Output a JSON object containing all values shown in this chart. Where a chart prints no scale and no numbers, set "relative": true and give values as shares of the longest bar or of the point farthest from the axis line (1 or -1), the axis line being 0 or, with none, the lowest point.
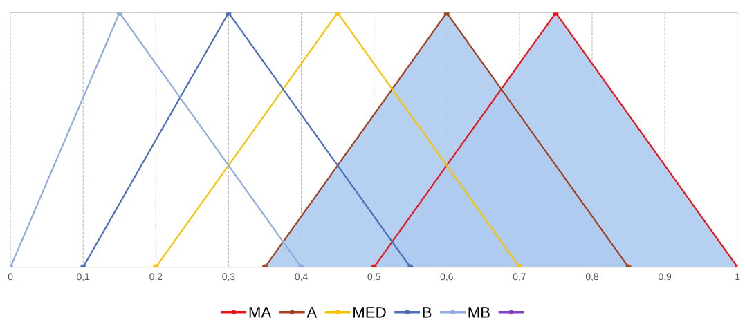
{
  "chart_data": {
    "type": "line",
    "relative": true,
    "xlim": [
      0,
      1
    ],
    "xticks": [
      0,
      {
        "value": 0.1,
        "label": "0,1"
      },
      {
        "value": 0.2,
        "label": "0,2"
      },
      {
        "value": 0.3,
        "label": "0,3"
      },
      {
        "value": 0.4,
        "label": "0,4"
      },
      {
        "value": 0.5,
        "label": "0,5"
      },
      {
        "value": 0.6,
        "label": "0,6"
      },
      {
        "value": 0.7,
        "label": "0,7"
      },
      {
        "value": 0.8,
        "label": "0,8"
      },
      {
        "value": 0.9,
        "label": "0,9"
      },
      1
    ],
    "tick_labels": "x",
    "grid": "x",
    "legend": "bottom",
    "marker": "circle",
    "line_style": "solid",
    "series": [
      {
        "name": "MA",
        "type": "area",
        "color": "#e8141c",
        "x": [
          0.5,
          0.75,
          1
        ],
        "values": [
          0,
          1,
          0
        ]
      },
      {
        "name": "A",
        "type": "area",
        "color": "#a0401f",
        "x": [
          0.35,
          0.6,
          0.85
        ],
        "values": [
          0,
          1,
          0
        ]
      },
      {
        "name": "MED",
        "color": "#f5c400",
        "x": [
          0.2,
          0.45,
          0.7
        ],
        "values": [
          0,
          1,
          0
        ]
      },
      {
        "name": "B",
        "color": "#4a6fb5",
        "x": [
          0.1,
          0.3,
          0.55
        ],
        "values": [
          0,
          1,
          0
        ]
      },
      {
        "name": "MB",
        "color": "#8faadc",
        "x": [
          0,
          0.15,
          0.4
        ],
        "values": [
          0,
          1,
          0
        ]
      },
      {
        "color": "#8040c0"
      }
    ]
  }
}
